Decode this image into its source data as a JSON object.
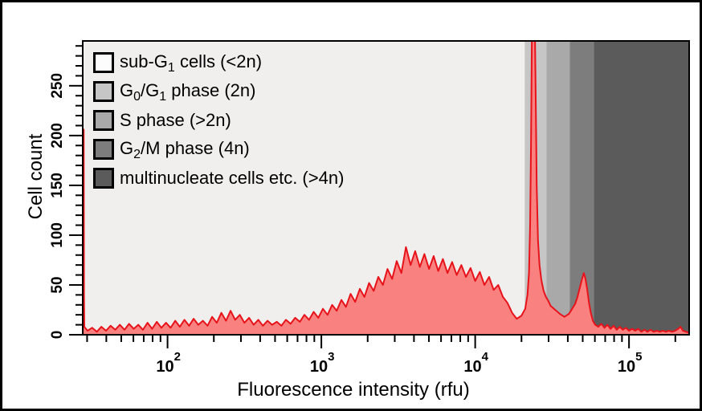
{
  "figure": {
    "background": "#ffffff",
    "outer_border_color": "#000000",
    "plot_background": "#f0efed",
    "frame_color": "#000000"
  },
  "legend": {
    "items": [
      {
        "slug": "sub-g1",
        "swatch_color": "#fcfcfc",
        "segments": [
          [
            "t",
            "sub-G"
          ],
          [
            "s",
            "1"
          ],
          [
            "t",
            " cells (<2n)"
          ]
        ]
      },
      {
        "slug": "g0-g1",
        "swatch_color": "#c6c6c6",
        "segments": [
          [
            "t",
            "G"
          ],
          [
            "s",
            "0"
          ],
          [
            "t",
            "/G"
          ],
          [
            "s",
            "1"
          ],
          [
            "t",
            " phase (2n)"
          ]
        ]
      },
      {
        "slug": "s-phase",
        "swatch_color": "#a9a9a9",
        "segments": [
          [
            "t",
            "S phase (>2n)"
          ]
        ]
      },
      {
        "slug": "g2-m",
        "swatch_color": "#7d7d7d",
        "segments": [
          [
            "t",
            "G"
          ],
          [
            "s",
            "2"
          ],
          [
            "t",
            "/M phase (4n)"
          ]
        ]
      },
      {
        "slug": "multinucleate",
        "swatch_color": "#5b5b5b",
        "segments": [
          [
            "t",
            "multinucleate cells etc. (>4n)"
          ]
        ]
      }
    ]
  },
  "chart_data": {
    "type": "area",
    "title": "",
    "subtitle": "",
    "xlabel": "Fluorescence intensity (rfu)",
    "ylabel": "Cell count",
    "x_scale": "log10",
    "xlim": [
      28.1,
      246000
    ],
    "ylim": [
      0,
      295
    ],
    "grid": false,
    "legend_position": "top-left-inside",
    "x_ticks": [
      {
        "value": 100,
        "base": "10",
        "exp": "2"
      },
      {
        "value": 1000,
        "base": "10",
        "exp": "3"
      },
      {
        "value": 10000,
        "base": "10",
        "exp": "4"
      },
      {
        "value": 100000,
        "base": "10",
        "exp": "5"
      }
    ],
    "x_minor_ticks_rule": "2-9 per decade on log scale",
    "y_ticks": [
      0,
      50,
      100,
      150,
      200,
      250
    ],
    "y_minor_step": 10,
    "series_name": "cell-count-histogram",
    "series_fill_color": "#f98280",
    "series_line_color": "#e8131a",
    "peak_note_2n_clipped_above": 295,
    "regions": [
      {
        "slug": "region-sub-g1",
        "label": "sub-G1 cells (<2n)",
        "from_rfu": 28.1,
        "to_rfu": 21000,
        "color": "#f0efed"
      },
      {
        "slug": "region-g0-g1",
        "label": "G0/G1 phase (2n)",
        "from_rfu": 21000,
        "to_rfu": 29100,
        "color": "#c6c6c6"
      },
      {
        "slug": "region-s-phase",
        "label": "S phase (>2n)",
        "from_rfu": 29100,
        "to_rfu": 41200,
        "color": "#a9a9a9"
      },
      {
        "slug": "region-g2-m",
        "label": "G2/M phase (4n)",
        "from_rfu": 41200,
        "to_rfu": 59000,
        "color": "#7d7d7d"
      },
      {
        "slug": "region-multinucleate",
        "label": "multinucleate cells etc. (>4n)",
        "from_rfu": 59000,
        "to_rfu": 246000,
        "color": "#5b5b5b"
      }
    ],
    "points_format": "[log10(fluorescence_rfu), cell_count]",
    "points": [
      [
        1.45,
        2
      ],
      [
        1.452,
        206
      ],
      [
        1.455,
        206
      ],
      [
        1.457,
        40
      ],
      [
        1.459,
        8
      ],
      [
        1.48,
        4
      ],
      [
        1.51,
        7
      ],
      [
        1.54,
        3
      ],
      [
        1.57,
        8
      ],
      [
        1.6,
        4
      ],
      [
        1.63,
        9
      ],
      [
        1.66,
        5
      ],
      [
        1.69,
        10
      ],
      [
        1.72,
        5
      ],
      [
        1.75,
        11
      ],
      [
        1.78,
        6
      ],
      [
        1.81,
        10
      ],
      [
        1.84,
        5
      ],
      [
        1.87,
        12
      ],
      [
        1.9,
        6
      ],
      [
        1.93,
        13
      ],
      [
        1.96,
        7
      ],
      [
        1.99,
        12
      ],
      [
        2.02,
        7
      ],
      [
        2.05,
        14
      ],
      [
        2.08,
        8
      ],
      [
        2.11,
        15
      ],
      [
        2.14,
        9
      ],
      [
        2.17,
        16
      ],
      [
        2.2,
        10
      ],
      [
        2.23,
        14
      ],
      [
        2.26,
        9
      ],
      [
        2.29,
        18
      ],
      [
        2.32,
        12
      ],
      [
        2.35,
        22
      ],
      [
        2.38,
        14
      ],
      [
        2.41,
        24
      ],
      [
        2.44,
        15
      ],
      [
        2.47,
        20
      ],
      [
        2.5,
        12
      ],
      [
        2.53,
        17
      ],
      [
        2.56,
        10
      ],
      [
        2.59,
        15
      ],
      [
        2.62,
        9
      ],
      [
        2.65,
        14
      ],
      [
        2.68,
        10
      ],
      [
        2.71,
        13
      ],
      [
        2.74,
        9
      ],
      [
        2.77,
        15
      ],
      [
        2.8,
        11
      ],
      [
        2.83,
        17
      ],
      [
        2.86,
        13
      ],
      [
        2.89,
        20
      ],
      [
        2.92,
        15
      ],
      [
        2.95,
        23
      ],
      [
        2.98,
        17
      ],
      [
        3.01,
        26
      ],
      [
        3.04,
        20
      ],
      [
        3.07,
        30
      ],
      [
        3.1,
        24
      ],
      [
        3.13,
        35
      ],
      [
        3.16,
        28
      ],
      [
        3.19,
        41
      ],
      [
        3.22,
        33
      ],
      [
        3.25,
        46
      ],
      [
        3.28,
        38
      ],
      [
        3.31,
        52
      ],
      [
        3.34,
        44
      ],
      [
        3.37,
        58
      ],
      [
        3.4,
        50
      ],
      [
        3.43,
        66
      ],
      [
        3.46,
        56
      ],
      [
        3.49,
        74
      ],
      [
        3.52,
        62
      ],
      [
        3.55,
        88
      ],
      [
        3.58,
        70
      ],
      [
        3.61,
        84
      ],
      [
        3.64,
        68
      ],
      [
        3.67,
        81
      ],
      [
        3.7,
        66
      ],
      [
        3.73,
        79
      ],
      [
        3.76,
        64
      ],
      [
        3.79,
        76
      ],
      [
        3.82,
        62
      ],
      [
        3.85,
        73
      ],
      [
        3.88,
        60
      ],
      [
        3.91,
        70
      ],
      [
        3.94,
        58
      ],
      [
        3.97,
        67
      ],
      [
        4.0,
        54
      ],
      [
        4.03,
        63
      ],
      [
        4.06,
        50
      ],
      [
        4.09,
        58
      ],
      [
        4.12,
        45
      ],
      [
        4.15,
        50
      ],
      [
        4.18,
        38
      ],
      [
        4.21,
        32
      ],
      [
        4.24,
        22
      ],
      [
        4.27,
        16
      ],
      [
        4.3,
        19
      ],
      [
        4.325,
        26
      ],
      [
        4.34,
        40
      ],
      [
        4.35,
        62
      ],
      [
        4.357,
        110
      ],
      [
        4.363,
        190
      ],
      [
        4.369,
        310
      ],
      [
        4.388,
        310
      ],
      [
        4.394,
        230
      ],
      [
        4.4,
        150
      ],
      [
        4.408,
        95
      ],
      [
        4.418,
        70
      ],
      [
        4.43,
        55
      ],
      [
        4.445,
        44
      ],
      [
        4.46,
        38
      ],
      [
        4.475,
        34
      ],
      [
        4.49,
        29
      ],
      [
        4.52,
        25
      ],
      [
        4.55,
        21
      ],
      [
        4.58,
        18
      ],
      [
        4.61,
        21
      ],
      [
        4.63,
        26
      ],
      [
        4.65,
        31
      ],
      [
        4.665,
        38
      ],
      [
        4.68,
        47
      ],
      [
        4.695,
        56
      ],
      [
        4.706,
        62
      ],
      [
        4.716,
        57
      ],
      [
        4.728,
        46
      ],
      [
        4.74,
        32
      ],
      [
        4.752,
        22
      ],
      [
        4.765,
        14
      ],
      [
        4.78,
        10
      ],
      [
        4.8,
        8
      ],
      [
        4.82,
        11
      ],
      [
        4.84,
        7
      ],
      [
        4.86,
        10
      ],
      [
        4.88,
        6
      ],
      [
        4.9,
        9
      ],
      [
        4.92,
        5
      ],
      [
        4.94,
        8
      ],
      [
        4.96,
        5
      ],
      [
        4.98,
        7
      ],
      [
        5.0,
        4
      ],
      [
        5.02,
        6
      ],
      [
        5.04,
        4
      ],
      [
        5.06,
        6
      ],
      [
        5.08,
        3
      ],
      [
        5.1,
        5
      ],
      [
        5.12,
        3
      ],
      [
        5.14,
        5
      ],
      [
        5.16,
        3
      ],
      [
        5.18,
        4
      ],
      [
        5.2,
        3
      ],
      [
        5.22,
        4
      ],
      [
        5.24,
        3
      ],
      [
        5.26,
        4
      ],
      [
        5.28,
        3
      ],
      [
        5.3,
        4
      ],
      [
        5.32,
        6
      ],
      [
        5.335,
        8
      ],
      [
        5.35,
        4
      ],
      [
        5.37,
        3
      ],
      [
        5.39,
        2
      ]
    ]
  }
}
